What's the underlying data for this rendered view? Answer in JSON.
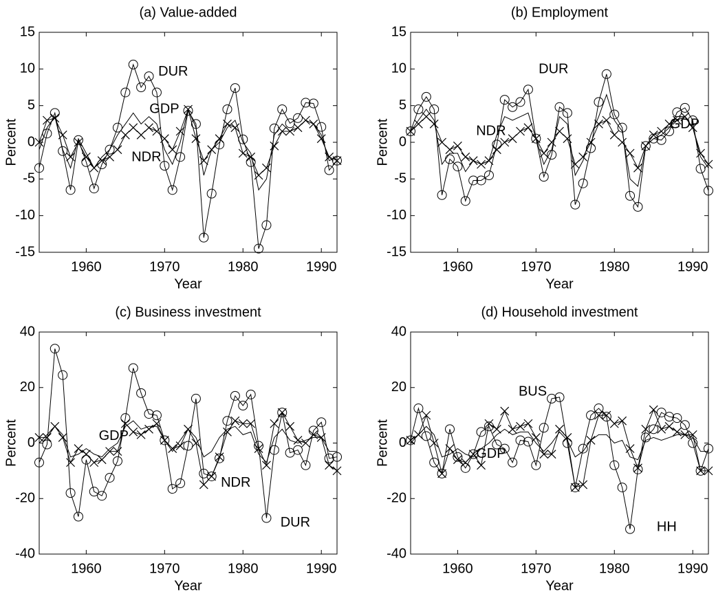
{
  "chart_data": [
    {
      "type": "line",
      "title": "(a) Value-added",
      "xlabel": "Year",
      "ylabel": "Percent",
      "x": [
        1954,
        1955,
        1956,
        1957,
        1958,
        1959,
        1960,
        1961,
        1962,
        1963,
        1964,
        1965,
        1966,
        1967,
        1968,
        1969,
        1970,
        1971,
        1972,
        1973,
        1974,
        1975,
        1976,
        1977,
        1978,
        1979,
        1980,
        1981,
        1982,
        1983,
        1984,
        1985,
        1986,
        1987,
        1988,
        1989,
        1990,
        1991,
        1992
      ],
      "xlim": [
        1954,
        1992
      ],
      "xticks": [
        1960,
        1970,
        1980,
        1990
      ],
      "ylim": [
        -15,
        15
      ],
      "yticks": [
        -15,
        -10,
        -5,
        0,
        5,
        10,
        15
      ],
      "series": [
        {
          "name": "GDP",
          "color": "#000000",
          "marker": "none",
          "values": [
            -1,
            2,
            3.5,
            -1,
            -3.5,
            0.5,
            -1.5,
            -3.5,
            -2,
            -1,
            1,
            2.5,
            4,
            2.5,
            3.5,
            2.5,
            -1,
            -3,
            0,
            4.5,
            2,
            -4.5,
            -1,
            0,
            2,
            3,
            0,
            -1.5,
            -6.5,
            -5,
            1,
            2.5,
            1.5,
            2,
            3,
            2.5,
            1,
            -2.5,
            -2
          ]
        },
        {
          "name": "DUR",
          "color": "#000000",
          "marker": "circle",
          "values": [
            -3.5,
            1.2,
            4,
            -1.2,
            -6.5,
            0.3,
            -2.7,
            -6.3,
            -3,
            -1,
            2,
            6.8,
            10.6,
            7.5,
            9,
            6.8,
            -3.2,
            -6.5,
            -2,
            4.3,
            2.5,
            -13,
            -7,
            -0.3,
            4.5,
            7.4,
            0.4,
            -2.7,
            -14.5,
            -11.3,
            1.9,
            4.5,
            2.6,
            3.3,
            5.4,
            5.3,
            2.1,
            -3.8,
            -2.5
          ]
        },
        {
          "name": "NDR",
          "color": "#000000",
          "marker": "cross",
          "values": [
            0,
            3,
            3.3,
            1,
            -2,
            0,
            -2,
            -3.5,
            -2.5,
            -2,
            -1,
            1,
            2,
            1,
            2,
            1.5,
            0.5,
            -1,
            1.5,
            4.5,
            0.5,
            -2.5,
            -1,
            0.5,
            2.5,
            2,
            -1.5,
            -2,
            -4.5,
            -3.5,
            -0.5,
            1.5,
            1.5,
            2,
            3,
            2.5,
            0.5,
            -2,
            -2.5
          ]
        }
      ]
    },
    {
      "type": "line",
      "title": "(b) Employment",
      "xlabel": "Year",
      "ylabel": "Percent",
      "x": [
        1954,
        1955,
        1956,
        1957,
        1958,
        1959,
        1960,
        1961,
        1962,
        1963,
        1964,
        1965,
        1966,
        1967,
        1968,
        1969,
        1970,
        1971,
        1972,
        1973,
        1974,
        1975,
        1976,
        1977,
        1978,
        1979,
        1980,
        1981,
        1982,
        1983,
        1984,
        1985,
        1986,
        1987,
        1988,
        1989,
        1990,
        1991,
        1992
      ],
      "xlim": [
        1954,
        1992
      ],
      "xticks": [
        1960,
        1970,
        1980,
        1990
      ],
      "ylim": [
        -15,
        15
      ],
      "yticks": [
        -15,
        -10,
        -5,
        0,
        5,
        10,
        15
      ],
      "series": [
        {
          "name": "GDP",
          "color": "#000000",
          "marker": "none",
          "values": [
            1.5,
            3,
            4.5,
            3,
            -3,
            -1.5,
            -1.5,
            -4,
            -2.5,
            -3,
            -2.5,
            1,
            3.5,
            3,
            3.5,
            4,
            0.5,
            -3,
            -1,
            3.5,
            2.5,
            -4.5,
            -2.5,
            1,
            3.5,
            6.5,
            3,
            1.5,
            -5,
            -6,
            -0.5,
            0.5,
            1,
            2,
            3.5,
            3.5,
            2,
            -2,
            -3.5
          ]
        },
        {
          "name": "DUR",
          "color": "#000000",
          "marker": "circle",
          "values": [
            1.5,
            4.5,
            6.2,
            4.5,
            -7.2,
            -2.3,
            -3.3,
            -8,
            -5.2,
            -5.2,
            -4.5,
            -0.3,
            5.8,
            4.8,
            5.5,
            7.2,
            0.5,
            -4.7,
            -1.7,
            4.8,
            4,
            -8.5,
            -5.6,
            -0.8,
            5.5,
            9.3,
            3.8,
            2,
            -7.3,
            -8.8,
            -0.5,
            0.5,
            0.3,
            1.5,
            4.1,
            4.7,
            3,
            -3.6,
            -6.6
          ]
        },
        {
          "name": "NDR",
          "color": "#000000",
          "marker": "cross",
          "values": [
            1.5,
            2.5,
            3.5,
            2.5,
            0,
            -1,
            -0.5,
            -2,
            -2.5,
            -3,
            -2.5,
            -1,
            0,
            0.5,
            1.5,
            2,
            0.5,
            -1.5,
            0,
            1.5,
            0.5,
            -3,
            -2,
            0,
            2.5,
            3,
            1,
            0,
            -1.5,
            -3.5,
            -0.5,
            1,
            1.5,
            2.5,
            3,
            3.5,
            2,
            -1.5,
            -3
          ]
        }
      ]
    },
    {
      "type": "line",
      "title": "(c) Business investment",
      "xlabel": "Year",
      "ylabel": "Percent",
      "x": [
        1954,
        1955,
        1956,
        1957,
        1958,
        1959,
        1960,
        1961,
        1962,
        1963,
        1964,
        1965,
        1966,
        1967,
        1968,
        1969,
        1970,
        1971,
        1972,
        1973,
        1974,
        1975,
        1976,
        1977,
        1978,
        1979,
        1980,
        1981,
        1982,
        1983,
        1984,
        1985,
        1986,
        1987,
        1988,
        1989,
        1990,
        1991,
        1992
      ],
      "xlim": [
        1954,
        1992
      ],
      "xticks": [
        1960,
        1970,
        1980,
        1990
      ],
      "ylim": [
        -40,
        40
      ],
      "yticks": [
        -40,
        -20,
        0,
        20,
        40
      ],
      "series": [
        {
          "name": "GDP",
          "color": "#000000",
          "marker": "none",
          "values": [
            0,
            3,
            6,
            3,
            -5,
            -4,
            -2,
            -4,
            -5,
            -2,
            0,
            6,
            8,
            5,
            6,
            6,
            1,
            -3,
            1,
            5,
            2,
            -5,
            -3,
            2,
            5,
            6,
            3,
            4,
            -4,
            -7,
            2,
            5,
            1,
            0,
            1,
            2,
            2,
            -3,
            -3
          ]
        },
        {
          "name": "DUR",
          "color": "#000000",
          "marker": "circle",
          "values": [
            -7,
            -0.5,
            34,
            24.5,
            -18,
            -26.5,
            -6,
            -17.5,
            -19,
            -12.5,
            -6.5,
            9,
            27,
            18,
            10.5,
            10,
            1,
            -16.5,
            -14.5,
            -1,
            16,
            -11,
            -12,
            -5.5,
            8,
            17,
            13.5,
            17.5,
            -1,
            -27,
            -2.5,
            11,
            -3.5,
            -2.5,
            -8,
            4.5,
            7.5,
            -5.5,
            -5
          ]
        },
        {
          "name": "NDR",
          "color": "#000000",
          "marker": "cross",
          "values": [
            2,
            2,
            6,
            2,
            -7,
            -2,
            -4,
            -7,
            -6,
            -3,
            -3,
            7,
            4,
            3,
            5,
            7,
            1,
            -2,
            -1,
            5,
            0,
            -15,
            -12,
            -5,
            4,
            8,
            7,
            7,
            -2,
            -8,
            7,
            11,
            6,
            1,
            0,
            3,
            2,
            -8,
            -10
          ]
        }
      ]
    },
    {
      "type": "line",
      "title": "(d) Household investment",
      "xlabel": "Year",
      "ylabel": "Percent",
      "x": [
        1954,
        1955,
        1956,
        1957,
        1958,
        1959,
        1960,
        1961,
        1962,
        1963,
        1964,
        1965,
        1966,
        1967,
        1968,
        1969,
        1970,
        1971,
        1972,
        1973,
        1974,
        1975,
        1976,
        1977,
        1978,
        1979,
        1980,
        1981,
        1982,
        1983,
        1984,
        1985,
        1986,
        1987,
        1988,
        1989,
        1990,
        1991,
        1992
      ],
      "xlim": [
        1954,
        1992
      ],
      "xticks": [
        1960,
        1970,
        1980,
        1990
      ],
      "ylim": [
        -40,
        40
      ],
      "yticks": [
        -40,
        -20,
        0,
        20,
        40
      ],
      "series": [
        {
          "name": "GDP",
          "color": "#000000",
          "marker": "none",
          "values": [
            0,
            3,
            6,
            3,
            -5,
            -4,
            -2,
            -4,
            -5,
            -2,
            0,
            3,
            5,
            3,
            4,
            4,
            0,
            -3,
            0,
            4,
            1,
            -5,
            -3,
            1,
            3,
            3,
            0,
            1,
            -5,
            -6,
            1,
            2,
            1,
            2,
            3,
            3,
            2,
            -3,
            -3
          ]
        },
        {
          "name": "HH",
          "color": "#000000",
          "marker": "circle",
          "values": [
            1,
            12.5,
            2.5,
            -7,
            -11,
            5,
            -5,
            -9,
            -4,
            4,
            6,
            -0.5,
            -2,
            -7,
            1,
            0.5,
            -8,
            5.5,
            16,
            16.5,
            0,
            -16,
            -2,
            10,
            12.5,
            9.5,
            -8,
            -16,
            -31,
            -9.5,
            2,
            5,
            11,
            9.5,
            9,
            6.5,
            0,
            -10,
            -2
          ]
        },
        {
          "name": "BUS",
          "color": "#000000",
          "marker": "cross",
          "values": [
            1,
            3,
            10,
            0,
            -11,
            -2,
            -6,
            -7,
            -4,
            -8,
            7,
            5,
            11.5,
            5,
            6,
            7,
            2,
            -4,
            -4,
            5,
            2,
            -16,
            -15,
            1,
            10,
            10,
            7,
            8,
            -2,
            -9,
            5,
            12,
            5,
            6,
            4,
            3,
            3,
            -10,
            -10
          ]
        }
      ]
    }
  ]
}
